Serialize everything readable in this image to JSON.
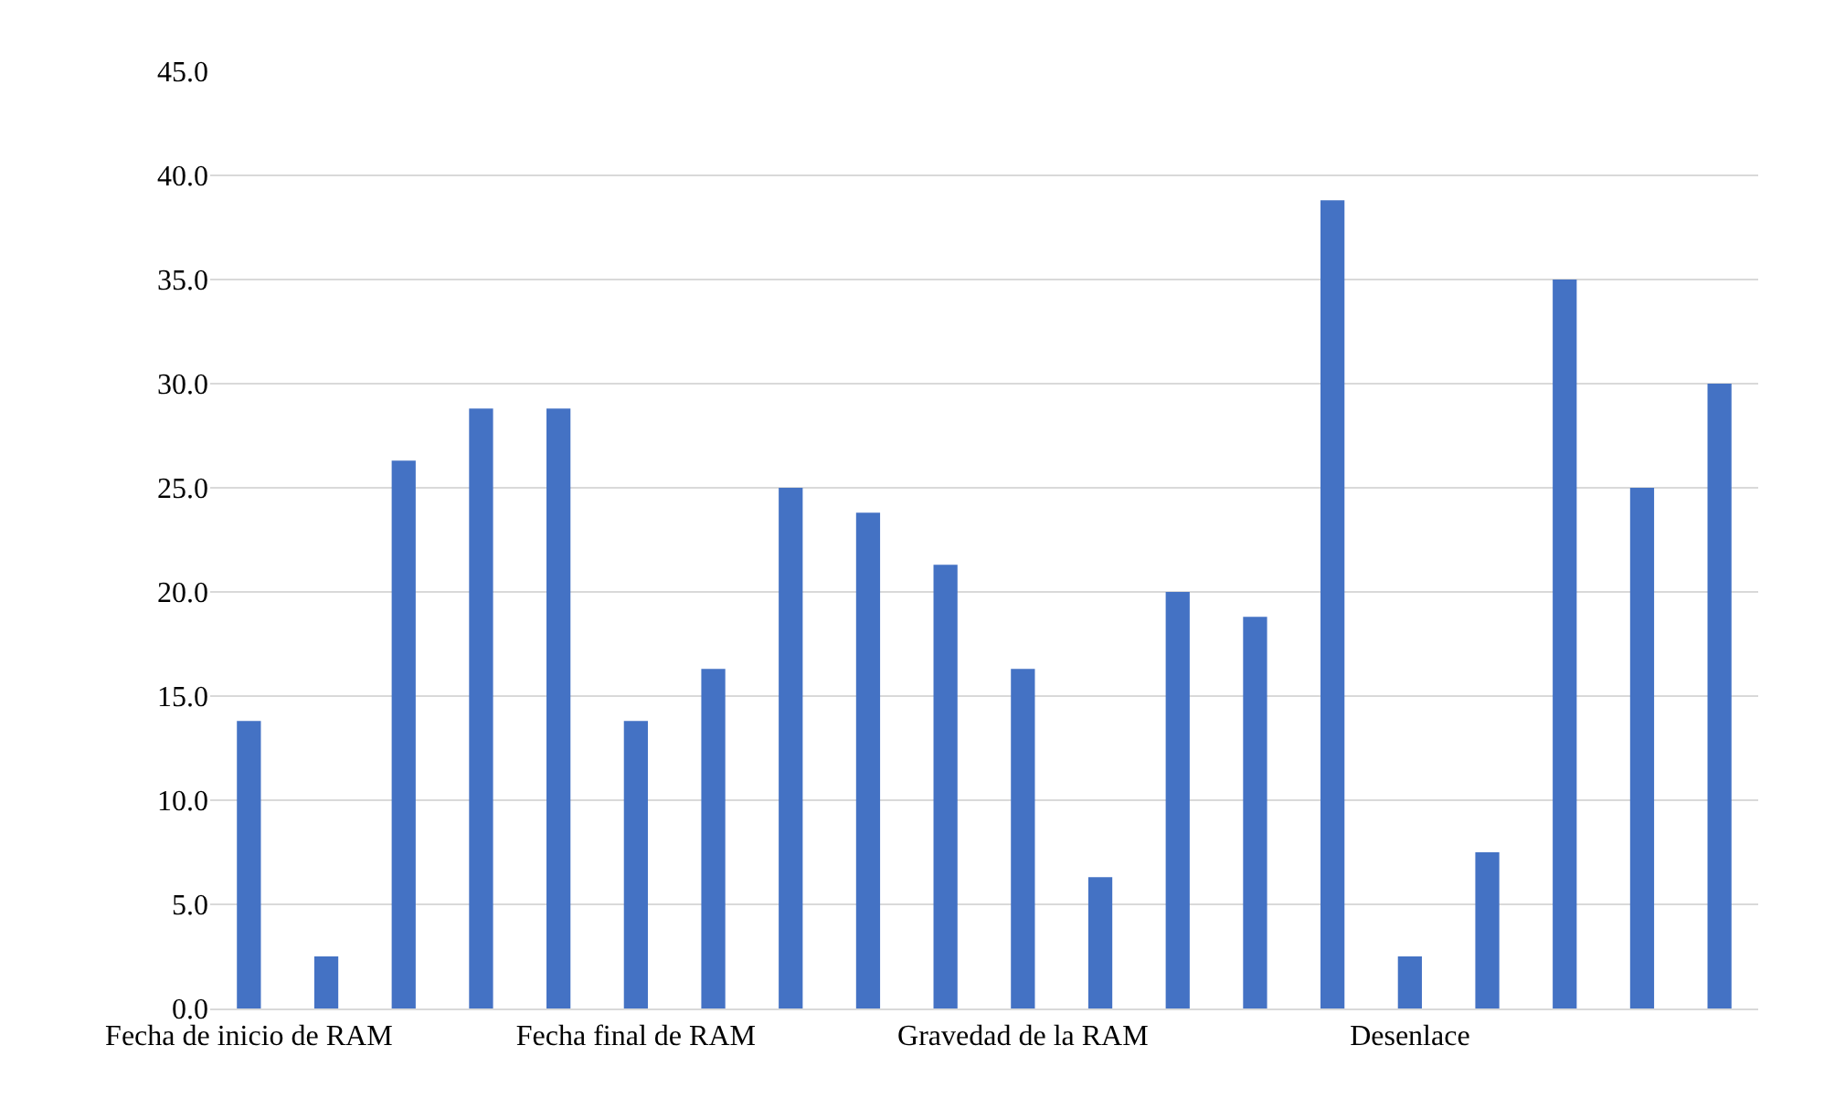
{
  "chart_data": {
    "type": "bar",
    "categories": [
      "Fecha de inicio de RAM",
      null,
      null,
      null,
      null,
      "Fecha final de RAM",
      null,
      null,
      null,
      null,
      "Gravedad de la RAM",
      null,
      null,
      null,
      null,
      "Desenlace",
      null,
      null,
      null,
      null
    ],
    "values": [
      13.8,
      2.5,
      26.3,
      28.8,
      28.8,
      13.8,
      16.3,
      25.0,
      23.8,
      21.3,
      16.3,
      6.3,
      20.0,
      18.8,
      38.8,
      2.5,
      7.5,
      35.0,
      25.0,
      30.0
    ],
    "color": "#4472c4",
    "ylim": [
      0,
      45
    ],
    "yticks": [
      {
        "value": 0,
        "label": "0.0"
      },
      {
        "value": 5,
        "label": "5.0"
      },
      {
        "value": 10,
        "label": "10.0"
      },
      {
        "value": 15,
        "label": "15.0"
      },
      {
        "value": 20,
        "label": "20.0"
      },
      {
        "value": 25,
        "label": "25.0"
      },
      {
        "value": 30,
        "label": "30.0"
      },
      {
        "value": 35,
        "label": "35.0"
      },
      {
        "value": 40,
        "label": "40.0"
      },
      {
        "value": 45,
        "label": "45.0"
      }
    ],
    "grid": "y"
  }
}
